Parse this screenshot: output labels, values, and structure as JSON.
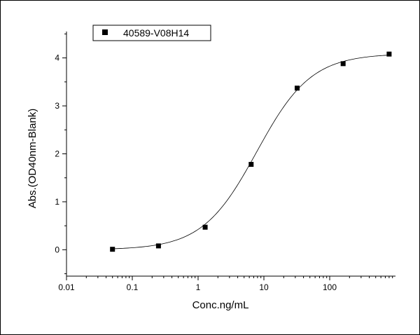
{
  "chart_data": {
    "type": "scatter",
    "title": "",
    "xlabel": "Conc.ng/mL",
    "ylabel": "Abs.(OD40nm-Blank)",
    "xscale": "log",
    "xlim": [
      0.01,
      1000
    ],
    "ylim": [
      -0.55,
      4.55
    ],
    "x_ticks": [
      0.01,
      0.1,
      1,
      10,
      100
    ],
    "x_tick_labels": [
      "0.01",
      "0.1",
      "1",
      "10",
      "100"
    ],
    "y_ticks": [
      0,
      1,
      2,
      3,
      4
    ],
    "y_tick_labels": [
      "0",
      "1",
      "2",
      "3",
      "4"
    ],
    "grid": false,
    "legend_position": "top-left",
    "series": [
      {
        "name": "40589-V08H14",
        "marker": "square",
        "x": [
          0.05,
          0.25,
          1.28,
          6.4,
          32,
          160,
          800
        ],
        "y": [
          0.01,
          0.08,
          0.47,
          1.78,
          3.37,
          3.88,
          4.08
        ]
      }
    ],
    "fit_curve": {
      "model": "4PL",
      "bottom": 0.0,
      "top": 4.09,
      "ec50": 7.8,
      "hill": 1.05
    }
  }
}
